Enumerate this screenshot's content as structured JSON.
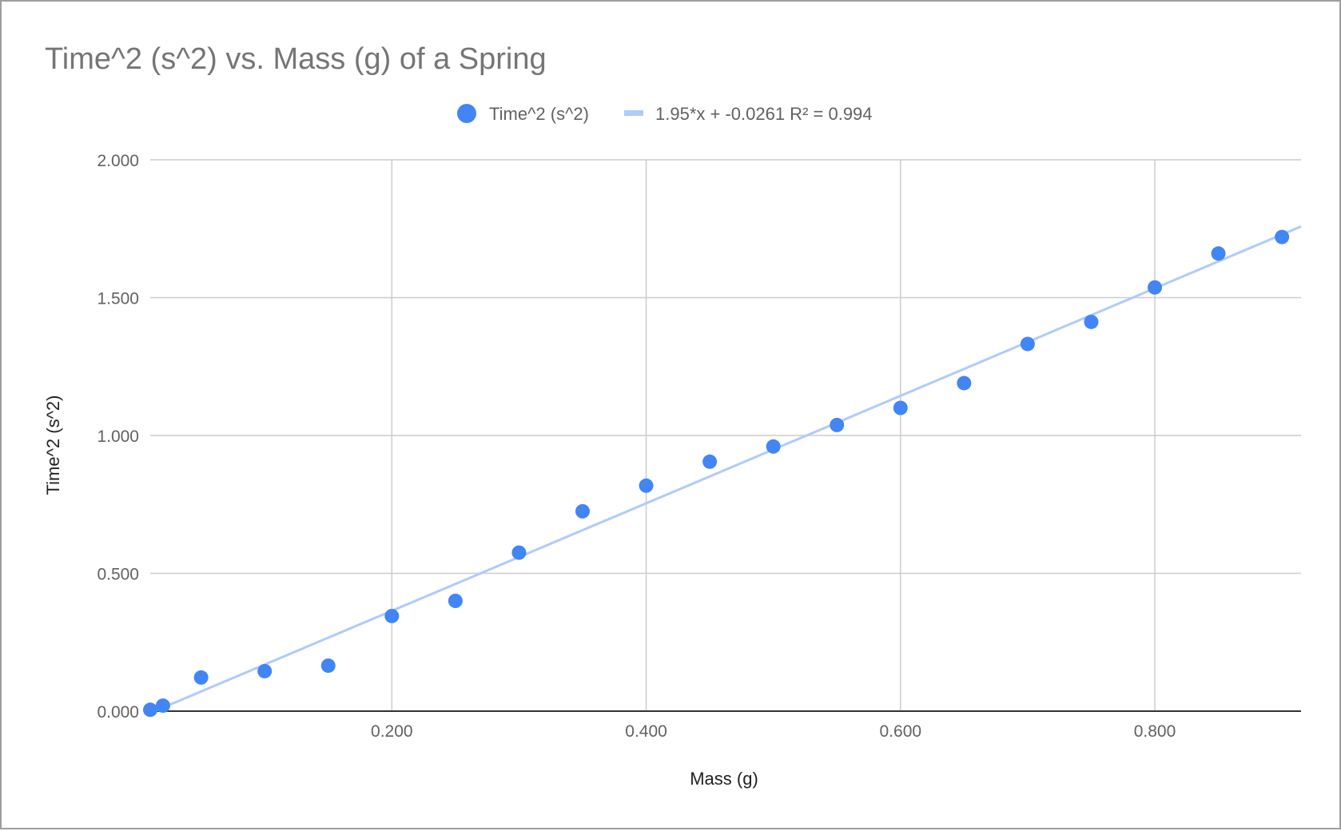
{
  "chart_data": {
    "type": "scatter",
    "title": "Time^2 (s^2) vs. Mass (g) of a Spring",
    "xlabel": "Mass (g)",
    "ylabel": "Time^2 (s^2)",
    "xlim": [
      0.01,
      0.915
    ],
    "ylim": [
      0,
      2.0
    ],
    "x_ticks": [
      0.2,
      0.4,
      0.6,
      0.8
    ],
    "x_tick_labels": [
      "0.200",
      "0.400",
      "0.600",
      "0.800"
    ],
    "y_ticks": [
      0,
      0.5,
      1.0,
      1.5,
      2.0
    ],
    "y_tick_labels": [
      "0.000",
      "0.500",
      "1.000",
      "1.500",
      "2.000"
    ],
    "grid": true,
    "legend_position": "top-center",
    "series": [
      {
        "name": "Time^2 (s^2)",
        "color": "#4285f4",
        "points": [
          {
            "x": 0.01,
            "y": 0.005
          },
          {
            "x": 0.02,
            "y": 0.02
          },
          {
            "x": 0.05,
            "y": 0.122
          },
          {
            "x": 0.1,
            "y": 0.145
          },
          {
            "x": 0.15,
            "y": 0.165
          },
          {
            "x": 0.2,
            "y": 0.345
          },
          {
            "x": 0.25,
            "y": 0.4
          },
          {
            "x": 0.3,
            "y": 0.575
          },
          {
            "x": 0.35,
            "y": 0.725
          },
          {
            "x": 0.4,
            "y": 0.818
          },
          {
            "x": 0.45,
            "y": 0.905
          },
          {
            "x": 0.5,
            "y": 0.96
          },
          {
            "x": 0.55,
            "y": 1.038
          },
          {
            "x": 0.6,
            "y": 1.1
          },
          {
            "x": 0.65,
            "y": 1.19
          },
          {
            "x": 0.7,
            "y": 1.332
          },
          {
            "x": 0.75,
            "y": 1.412
          },
          {
            "x": 0.8,
            "y": 1.537
          },
          {
            "x": 0.85,
            "y": 1.66
          },
          {
            "x": 0.9,
            "y": 1.72
          }
        ]
      }
    ],
    "trendline": {
      "label": "1.95*x + -0.0261 R² = 0.994",
      "slope": 1.95,
      "intercept": -0.0261,
      "color": "#aecbfa"
    }
  }
}
